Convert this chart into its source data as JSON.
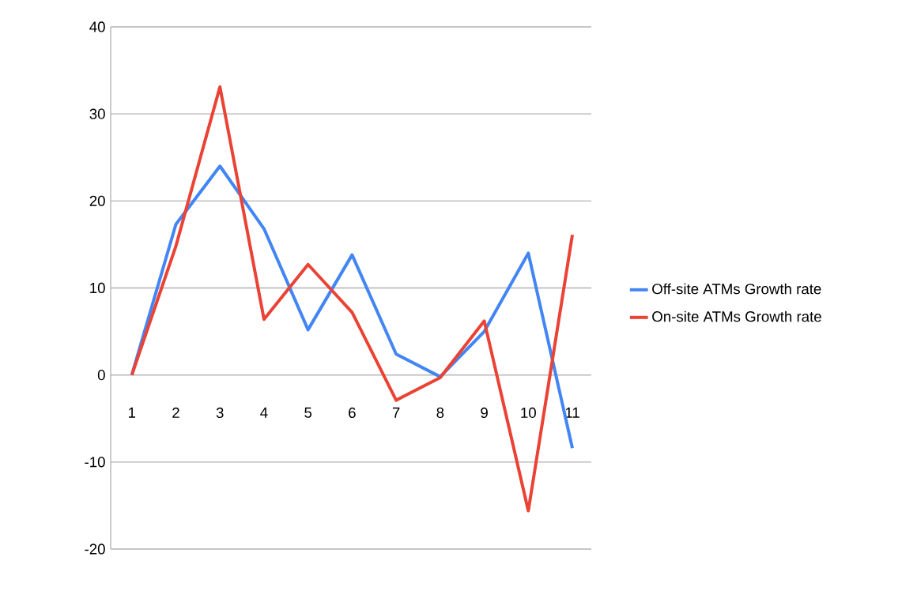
{
  "chart_data": {
    "type": "line",
    "categories": [
      "1",
      "2",
      "3",
      "4",
      "5",
      "6",
      "7",
      "8",
      "9",
      "10",
      "11"
    ],
    "series": [
      {
        "name": "Off-site ATMs Growth rate",
        "color": "#4285f4",
        "values": [
          0,
          17.3,
          24.0,
          16.8,
          5.2,
          13.8,
          2.4,
          -0.2,
          5.0,
          14.0,
          -8.4
        ]
      },
      {
        "name": "On-site ATMs Growth rate",
        "color": "#ea4335",
        "values": [
          0,
          14.8,
          33.1,
          6.4,
          12.7,
          7.2,
          -2.9,
          -0.3,
          6.2,
          -15.6,
          16.1
        ]
      }
    ],
    "ylim": [
      -20,
      40
    ],
    "yticks": [
      -20,
      -10,
      0,
      10,
      20,
      30,
      40
    ],
    "grid": "y",
    "legend": "right"
  }
}
